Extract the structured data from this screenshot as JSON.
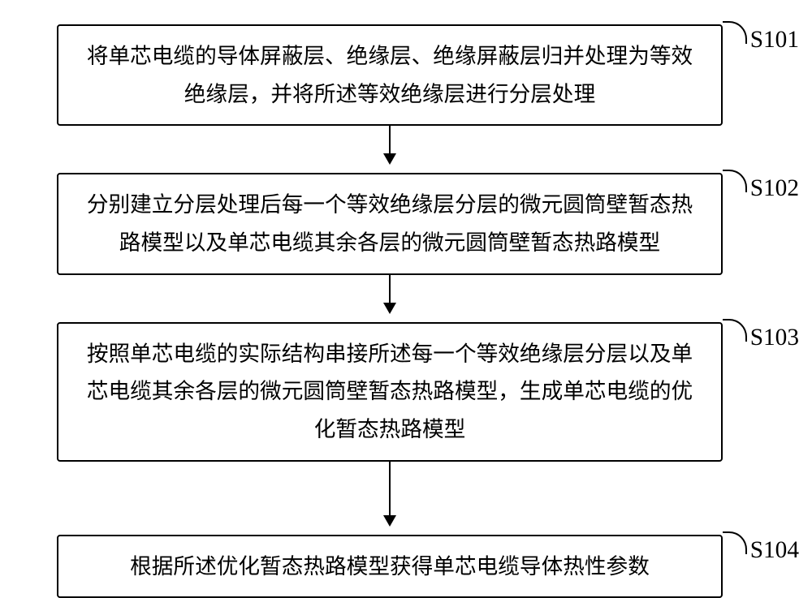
{
  "flowchart": {
    "type": "flowchart",
    "background_color": "#ffffff",
    "border_color": "#000000",
    "text_color": "#000000",
    "font_size_pt": 20,
    "label_font_size_pt": 22,
    "box_border_width": 2,
    "box_border_radius": 4,
    "arrow_head_size": 14,
    "nodes": [
      {
        "id": "s101",
        "label": "S101",
        "text": "将单芯电缆的导体屏蔽层、绝缘层、绝缘屏蔽层归并处理为等效绝缘层，并将所述等效绝缘层进行分层处理",
        "arrow_after_height": 58
      },
      {
        "id": "s102",
        "label": "S102",
        "text": "分别建立分层处理后每一个等效绝缘层分层的微元圆筒壁暂态热路模型以及单芯电缆其余各层的微元圆筒壁暂态热路模型",
        "arrow_after_height": 58
      },
      {
        "id": "s103",
        "label": "S103",
        "text": "按照单芯电缆的实际结构串接所述每一个等效绝缘层分层以及单芯电缆其余各层的微元圆筒壁暂态热路模型，生成单芯电缆的优化暂态热路模型",
        "arrow_after_height": 90
      },
      {
        "id": "s104",
        "label": "S104",
        "text": "根据所述优化暂态热路模型获得单芯电缆导体热性参数",
        "arrow_after_height": 0
      }
    ]
  }
}
